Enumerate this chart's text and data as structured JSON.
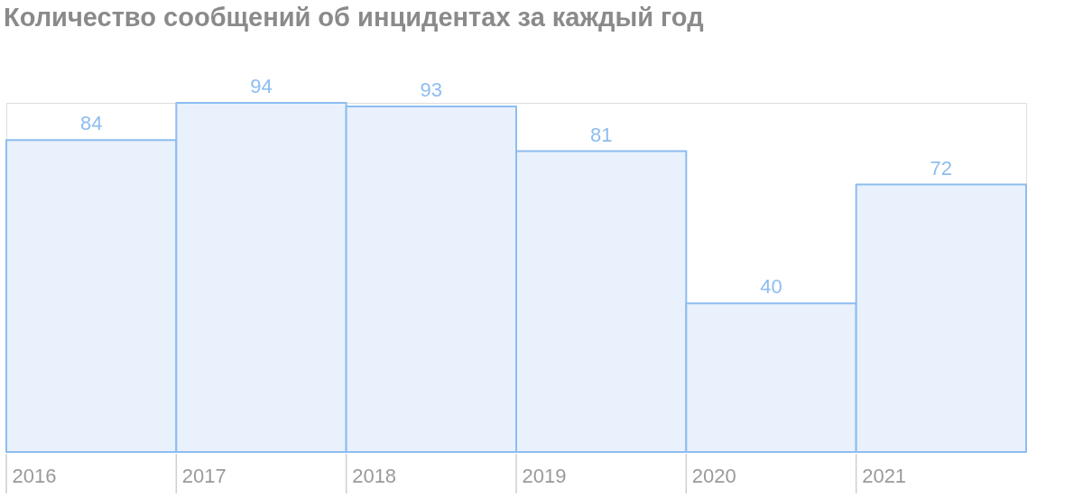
{
  "chart_data": {
    "type": "bar",
    "title": "Количество сообщений об инцидентах за каждый год",
    "categories": [
      "2016",
      "2017",
      "2018",
      "2019",
      "2020",
      "2021"
    ],
    "values": [
      84,
      94,
      93,
      81,
      40,
      72
    ],
    "color": "#e9f1fc",
    "data_labels": true
  }
}
